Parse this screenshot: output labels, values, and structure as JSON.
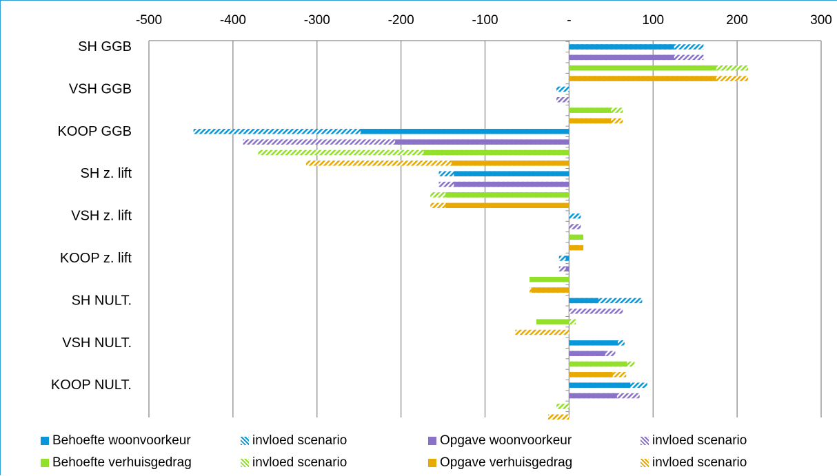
{
  "chart_data": {
    "type": "bar",
    "orientation": "horizontal",
    "xlim": [
      -500,
      300
    ],
    "ticks": [
      {
        "value": -500,
        "label": "-500"
      },
      {
        "value": -400,
        "label": "-400"
      },
      {
        "value": -300,
        "label": "-300"
      },
      {
        "value": -200,
        "label": "-200"
      },
      {
        "value": -100,
        "label": "-100"
      },
      {
        "value": 0,
        "label": "-"
      },
      {
        "value": 100,
        "label": "100"
      },
      {
        "value": 200,
        "label": "200"
      },
      {
        "value": 300,
        "label": "300"
      }
    ],
    "categories": [
      "SH GGB",
      "VSH GGB",
      "KOOP GGB",
      "SH z. lift",
      "VSH z. lift",
      "KOOP z. lift",
      "SH NULT.",
      "VSH NULT.",
      "KOOP NULT."
    ],
    "series": [
      {
        "name": "Behoefte woonvoorkeur",
        "color": "#0a97d9",
        "base": [
          125,
          0,
          -248,
          -137,
          0,
          -4,
          35,
          58,
          73
        ],
        "scenario": [
          160,
          -15,
          -447,
          -155,
          14,
          -12,
          87,
          66,
          93
        ]
      },
      {
        "name": "Opgave woonvoorkeur",
        "color": "#8a72c8",
        "base": [
          125,
          0,
          -207,
          -137,
          0,
          -4,
          0,
          43,
          57
        ],
        "scenario": [
          160,
          -15,
          -388,
          -155,
          14,
          -12,
          64,
          55,
          84
        ]
      },
      {
        "name": "Behoefte verhuisgedrag",
        "color": "#92e02a",
        "base": [
          175,
          50,
          -173,
          -147,
          17,
          -47,
          -39,
          69,
          0
        ],
        "scenario": [
          213,
          64,
          -370,
          -165,
          17,
          -47,
          8,
          78,
          -15
        ]
      },
      {
        "name": "Opgave verhuisgedrag",
        "color": "#e8a900",
        "base": [
          175,
          50,
          -140,
          -147,
          17,
          -45,
          0,
          52,
          0
        ],
        "scenario": [
          213,
          64,
          -313,
          -165,
          17,
          -47,
          -64,
          68,
          -25
        ]
      }
    ],
    "legend": {
      "position": "bottom",
      "items": [
        {
          "label": "Behoefte woonvoorkeur",
          "color": "#0a97d9",
          "style": "solid"
        },
        {
          "label": "invloed scenario",
          "color": "#0a97d9",
          "style": "hatched"
        },
        {
          "label": "Opgave woonvoorkeur",
          "color": "#8a72c8",
          "style": "solid"
        },
        {
          "label": "invloed scenario",
          "color": "#8a72c8",
          "style": "hatched"
        },
        {
          "label": "Behoefte verhuisgedrag",
          "color": "#92e02a",
          "style": "solid"
        },
        {
          "label": "invloed scenario",
          "color": "#92e02a",
          "style": "hatched"
        },
        {
          "label": "Opgave verhuisgedrag",
          "color": "#e8a900",
          "style": "solid"
        },
        {
          "label": "invloed scenario",
          "color": "#e8a900",
          "style": "hatched"
        }
      ]
    },
    "grid": "vertical"
  }
}
